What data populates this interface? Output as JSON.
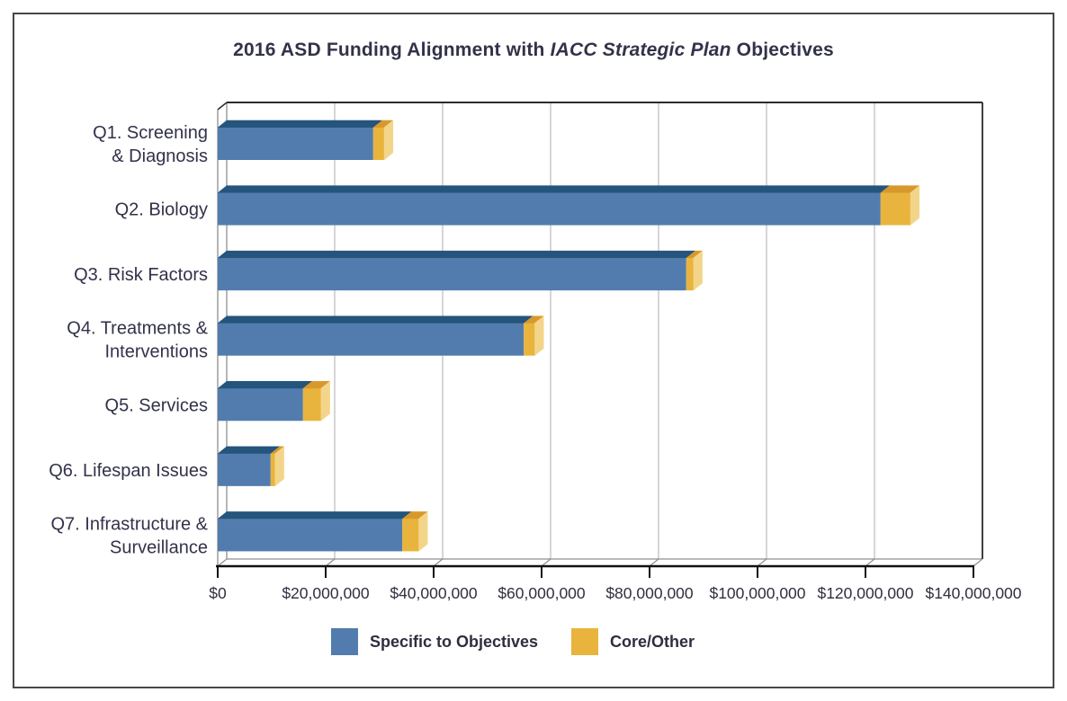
{
  "title": {
    "prefix": "2016 ASD Funding Alignment with ",
    "italic": "IACC Strategic Plan",
    "suffix": " Objectives"
  },
  "chart_data": {
    "type": "bar",
    "orientation": "horizontal",
    "style": "3d-stacked",
    "title": "2016 ASD Funding Alignment with IACC Strategic Plan Objectives",
    "xlabel": "",
    "ylabel": "",
    "grid": true,
    "legend_position": "bottom",
    "categories": [
      [
        "Q1. Screening",
        "& Diagnosis"
      ],
      [
        "Q2. Biology"
      ],
      [
        "Q3. Risk Factors"
      ],
      [
        "Q4. Treatments &",
        "Interventions"
      ],
      [
        "Q5. Services"
      ],
      [
        "Q6. Lifespan Issues"
      ],
      [
        "Q7. Infrastructure &",
        "Surveillance"
      ]
    ],
    "series": [
      {
        "name": "Specific to Objectives",
        "color": "#527cae",
        "top_color": "#25547c",
        "side_color": "#3d689a",
        "values": [
          28800000,
          122800000,
          86800000,
          56700000,
          15800000,
          9800000,
          34200000
        ]
      },
      {
        "name": "Core/Other",
        "color": "#e9b43d",
        "top_color": "#d8992c",
        "side_color": "#f3d58a",
        "values": [
          2000000,
          5500000,
          1300000,
          2000000,
          3300000,
          800000,
          3000000
        ]
      }
    ],
    "x_axis": {
      "min": 0,
      "max": 140000000,
      "tick_interval": 20000000,
      "tick_labels": [
        "$0",
        "$20,000,000",
        "$40,000,000",
        "$60,000,000",
        "$80,000,000",
        "$100,000,000",
        "$120,000,000",
        "$140,000,000"
      ]
    },
    "legend": [
      {
        "label": "Specific to Objectives",
        "color": "#527cae"
      },
      {
        "label": "Core/Other",
        "color": "#e9b43d"
      }
    ]
  },
  "colors": {
    "gridline": "#c9c9c9",
    "frame_light": "#8f8f8f",
    "frame_dark": "#2b2b2b",
    "axis": "#111111",
    "text": "#32324a"
  }
}
